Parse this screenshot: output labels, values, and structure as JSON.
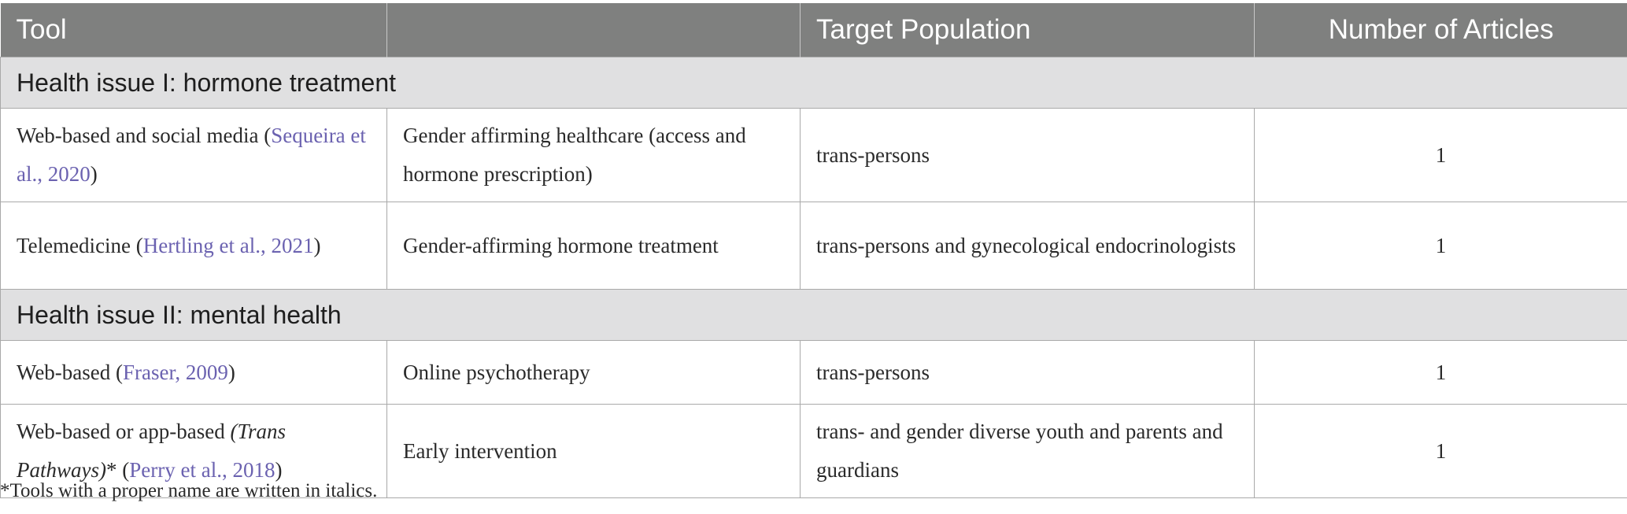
{
  "header": {
    "col1": "Tool",
    "col2": "",
    "col3": "Target Population",
    "col4": "Number of Articles"
  },
  "sections": [
    {
      "title": "Health issue I: hormone treatment",
      "rows": [
        {
          "tool_text": "Web-based and social media (",
          "tool_italic": "",
          "tool_suffix": "",
          "citation": "Sequeira et al., 2020",
          "tool_close": ")",
          "focus": "Gender affirming healthcare (access and hormone prescription)",
          "population": "trans-persons",
          "articles": "1"
        },
        {
          "tool_text": "Telemedicine (",
          "tool_italic": "",
          "tool_suffix": "",
          "citation": "Hertling et al., 2021",
          "tool_close": ")",
          "focus": "Gender-affirming hormone treatment",
          "population": "trans-persons and gynecological endocrinologists",
          "articles": "1"
        }
      ]
    },
    {
      "title": "Health issue II: mental health",
      "rows": [
        {
          "tool_text": "Web-based (",
          "tool_italic": "",
          "tool_suffix": "",
          "citation": "Fraser, 2009",
          "tool_close": ")",
          "focus": "Online psychotherapy",
          "population": "trans-persons",
          "articles": "1"
        },
        {
          "tool_text": "Web-based or app-based ",
          "tool_italic": "(Trans Pathways)",
          "tool_suffix": "* (",
          "citation": "Perry et al., 2018",
          "tool_close": ")",
          "focus": "Early intervention",
          "population": "trans- and gender diverse youth and parents and guardians",
          "articles": "1"
        }
      ]
    }
  ],
  "footnote": "*Tools with a proper name are written in italics.",
  "colors": {
    "header_bg": "#7f807f",
    "section_bg": "#e0e0e1",
    "citation_link": "#6b62b0"
  }
}
